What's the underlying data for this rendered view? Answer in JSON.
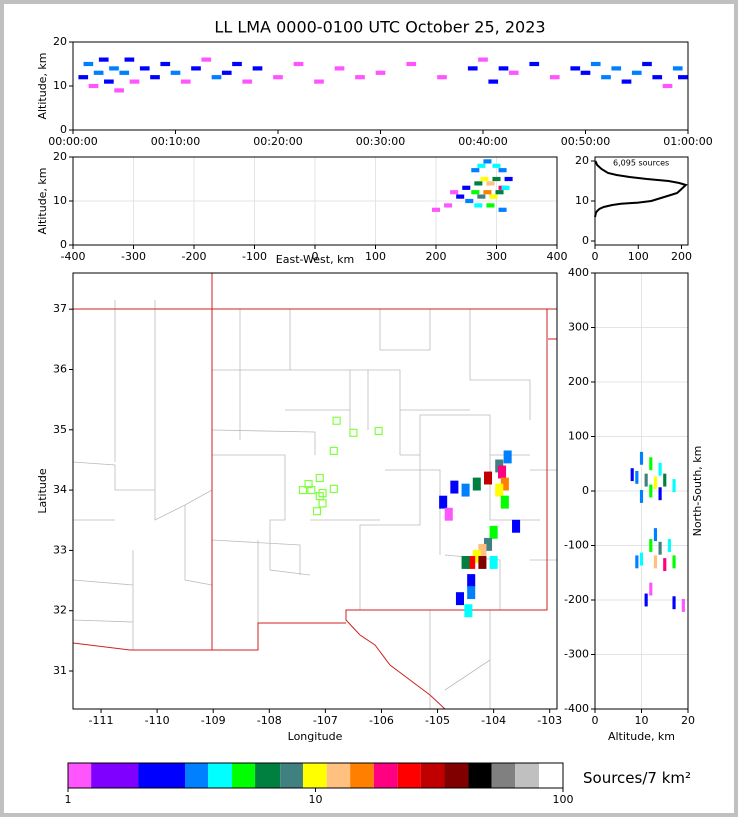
{
  "chart_data": [
    {
      "type": "scatter",
      "title": "LL LMA 0000-0100 UTC October 25, 2023",
      "ylabel": "Altitude, km",
      "xlim": [
        0,
        60
      ],
      "ylim": [
        0,
        20
      ],
      "xticks": [
        {
          "value": 0,
          "label": "00:00:00"
        },
        {
          "value": 10,
          "label": "00:10:00"
        },
        {
          "value": 20,
          "label": "00:20:00"
        },
        {
          "value": 30,
          "label": "00:30:00"
        },
        {
          "value": 40,
          "label": "00:40:00"
        },
        {
          "value": 50,
          "label": "00:50:00"
        },
        {
          "value": 60,
          "label": "01:00:00"
        }
      ],
      "yticks": [
        0,
        10,
        20
      ],
      "x": [
        1,
        1.5,
        2,
        2.5,
        3,
        3.5,
        4,
        4.5,
        5,
        5.5,
        6,
        7,
        8,
        9,
        10,
        11,
        12,
        13,
        14,
        15,
        16,
        17,
        18,
        20,
        22,
        24,
        26,
        28,
        30,
        33,
        36,
        39,
        40,
        41,
        42,
        43,
        45,
        47,
        49,
        50,
        51,
        52,
        53,
        54,
        55,
        56,
        57,
        58,
        59,
        59.5
      ],
      "values": [
        12,
        15,
        10,
        13,
        16,
        11,
        14,
        9,
        13,
        16,
        11,
        14,
        12,
        15,
        13,
        11,
        14,
        16,
        12,
        13,
        15,
        11,
        14,
        12,
        15,
        11,
        14,
        12,
        13,
        15,
        12,
        14,
        16,
        11,
        14,
        13,
        15,
        12,
        14,
        13,
        15,
        12,
        14,
        11,
        13,
        15,
        12,
        10,
        14,
        12
      ],
      "counts": [
        2,
        3,
        1,
        3,
        2,
        2,
        3,
        1,
        3,
        2,
        1,
        2,
        2,
        2,
        3,
        1,
        2,
        1,
        3,
        2,
        2,
        1,
        2,
        1,
        1,
        1,
        1,
        1,
        1,
        1,
        1,
        2,
        1,
        2,
        2,
        1,
        2,
        1,
        2,
        2,
        3,
        3,
        3,
        2,
        3,
        2,
        2,
        1,
        3,
        2
      ]
    },
    {
      "type": "scatter",
      "xlabel": "East-West, km",
      "ylabel": "Altitude, km",
      "grid": true,
      "xlim": [
        -400,
        400
      ],
      "ylim": [
        0,
        20
      ],
      "xticks": [
        -400,
        -300,
        -200,
        -100,
        0,
        100,
        200,
        300,
        400
      ],
      "yticks": [
        0,
        10,
        20
      ],
      "x": [
        265,
        275,
        285,
        300,
        310,
        270,
        280,
        290,
        300,
        310,
        265,
        275,
        285,
        295,
        305,
        315,
        255,
        270,
        290,
        310,
        240,
        220,
        200,
        230,
        320,
        250
      ],
      "values": [
        17,
        18,
        19,
        18,
        17,
        14,
        15,
        14,
        15,
        13,
        12,
        11,
        12,
        11,
        12,
        13,
        10,
        9,
        9,
        8,
        11,
        9,
        8,
        12,
        15,
        13
      ],
      "counts": [
        3,
        4,
        3,
        4,
        3,
        6,
        9,
        12,
        7,
        20,
        5,
        8,
        14,
        10,
        6,
        4,
        3,
        4,
        5,
        3,
        2,
        1,
        1,
        1,
        2,
        2
      ]
    },
    {
      "type": "line",
      "annotation": "6,095 sources",
      "color": "#000000",
      "xlim": [
        0,
        215
      ],
      "ylim": [
        -1,
        21
      ],
      "xticks": [
        0,
        100,
        200
      ],
      "yticks": [
        0,
        10,
        20
      ],
      "x": [
        0,
        2,
        5,
        10,
        20,
        40,
        60,
        100,
        130,
        145,
        160,
        175,
        190,
        200,
        205,
        210,
        195,
        170,
        120,
        80,
        50,
        30,
        15,
        5,
        1
      ],
      "values": [
        6,
        7,
        7.5,
        8,
        8.5,
        9,
        9.3,
        9.6,
        10,
        10.5,
        11,
        11.5,
        12,
        13,
        13.5,
        14,
        14.5,
        15,
        15.5,
        16,
        16.5,
        17,
        18,
        19,
        20
      ]
    },
    {
      "type": "scatter",
      "xlabel": "Longitude",
      "ylabel": "Latitude",
      "xlim": [
        -111.5,
        -102.87
      ],
      "ylim": [
        30.37,
        37.6
      ],
      "xticks": [
        -111,
        -110,
        -109,
        -108,
        -107,
        -106,
        -105,
        -104,
        -103
      ],
      "yticks": [
        31,
        32,
        33,
        34,
        35,
        36,
        37
      ],
      "x": [
        -103.9,
        -103.85,
        -104.1,
        -104.3,
        -104.5,
        -104.7,
        -103.8,
        -103.9,
        -103.8,
        -104.9,
        -104.8,
        -104.0,
        -104.1,
        -104.2,
        -104.3,
        -104.2,
        -104.4,
        -104.5,
        -104.0,
        -104.4,
        -104.4,
        -104.45,
        -104.6,
        -103.75,
        -103.6
      ],
      "values": [
        34.4,
        34.3,
        34.2,
        34.1,
        34.0,
        34.05,
        34.1,
        34.0,
        33.8,
        33.8,
        33.6,
        33.3,
        33.1,
        33.0,
        32.9,
        32.8,
        32.8,
        32.8,
        32.8,
        32.5,
        32.3,
        32.0,
        32.2,
        34.55,
        33.4
      ],
      "counts": [
        8,
        20,
        30,
        6,
        3,
        2,
        15,
        10,
        5,
        2,
        1,
        5,
        8,
        12,
        10,
        40,
        25,
        6,
        4,
        2,
        3,
        4,
        2,
        3,
        2
      ],
      "stations": {
        "color": "#80ff40",
        "x": [
          -106.8,
          -106.5,
          -106.05,
          -106.85,
          -107.1,
          -107.3,
          -107.4,
          -107.25,
          -107.05,
          -106.85,
          -107.1,
          -107.05,
          -107.15
        ],
        "values": [
          35.15,
          34.95,
          34.98,
          34.65,
          34.2,
          34.1,
          34.0,
          34.0,
          33.95,
          34.02,
          33.9,
          33.78,
          33.65
        ]
      }
    },
    {
      "type": "scatter",
      "xlabel": "Altitude, km",
      "ylabel": "North-South, km",
      "grid": true,
      "xlim": [
        0,
        20
      ],
      "ylim": [
        -400,
        400
      ],
      "xticks": [
        0,
        10,
        20
      ],
      "yticks": [
        -400,
        -300,
        -200,
        -100,
        0,
        100,
        200,
        300,
        400
      ],
      "x": [
        10,
        12,
        14,
        9,
        11,
        13,
        15,
        17,
        12,
        10,
        14,
        8,
        13,
        12,
        14,
        16,
        10,
        13,
        15,
        17,
        9,
        11,
        17,
        19,
        12
      ],
      "values": [
        60,
        50,
        40,
        25,
        20,
        15,
        20,
        10,
        0,
        -10,
        -5,
        30,
        -80,
        -100,
        -105,
        -100,
        -125,
        -130,
        -135,
        -130,
        -130,
        -200,
        -205,
        -210,
        -180
      ],
      "counts": [
        3,
        5,
        4,
        3,
        8,
        10,
        6,
        4,
        5,
        3,
        2,
        2,
        3,
        5,
        8,
        4,
        4,
        12,
        20,
        5,
        3,
        2,
        2,
        1,
        1
      ]
    },
    {
      "type": "colorbar",
      "label": "Sources/7 km²",
      "log": true,
      "xlim": [
        1,
        100
      ],
      "xticks": [
        1,
        10,
        100
      ],
      "levels": [
        1,
        1.24,
        1.92,
        2.97,
        3.68,
        4.6,
        5.7,
        7.2,
        8.9,
        11.1,
        13.8,
        17.2,
        21.5,
        26.6,
        33.2,
        41.5,
        51.5,
        64,
        80,
        100
      ],
      "colors": [
        "#ff55ff",
        "#8000ff",
        "#0000ff",
        "#0080ff",
        "#00ffff",
        "#00ff00",
        "#008040",
        "#408080",
        "#ffff00",
        "#ffc080",
        "#ff8000",
        "#ff0080",
        "#ff0000",
        "#c00000",
        "#800000",
        "#000000",
        "#808080",
        "#c0c0c0",
        "#ffffff"
      ]
    }
  ]
}
